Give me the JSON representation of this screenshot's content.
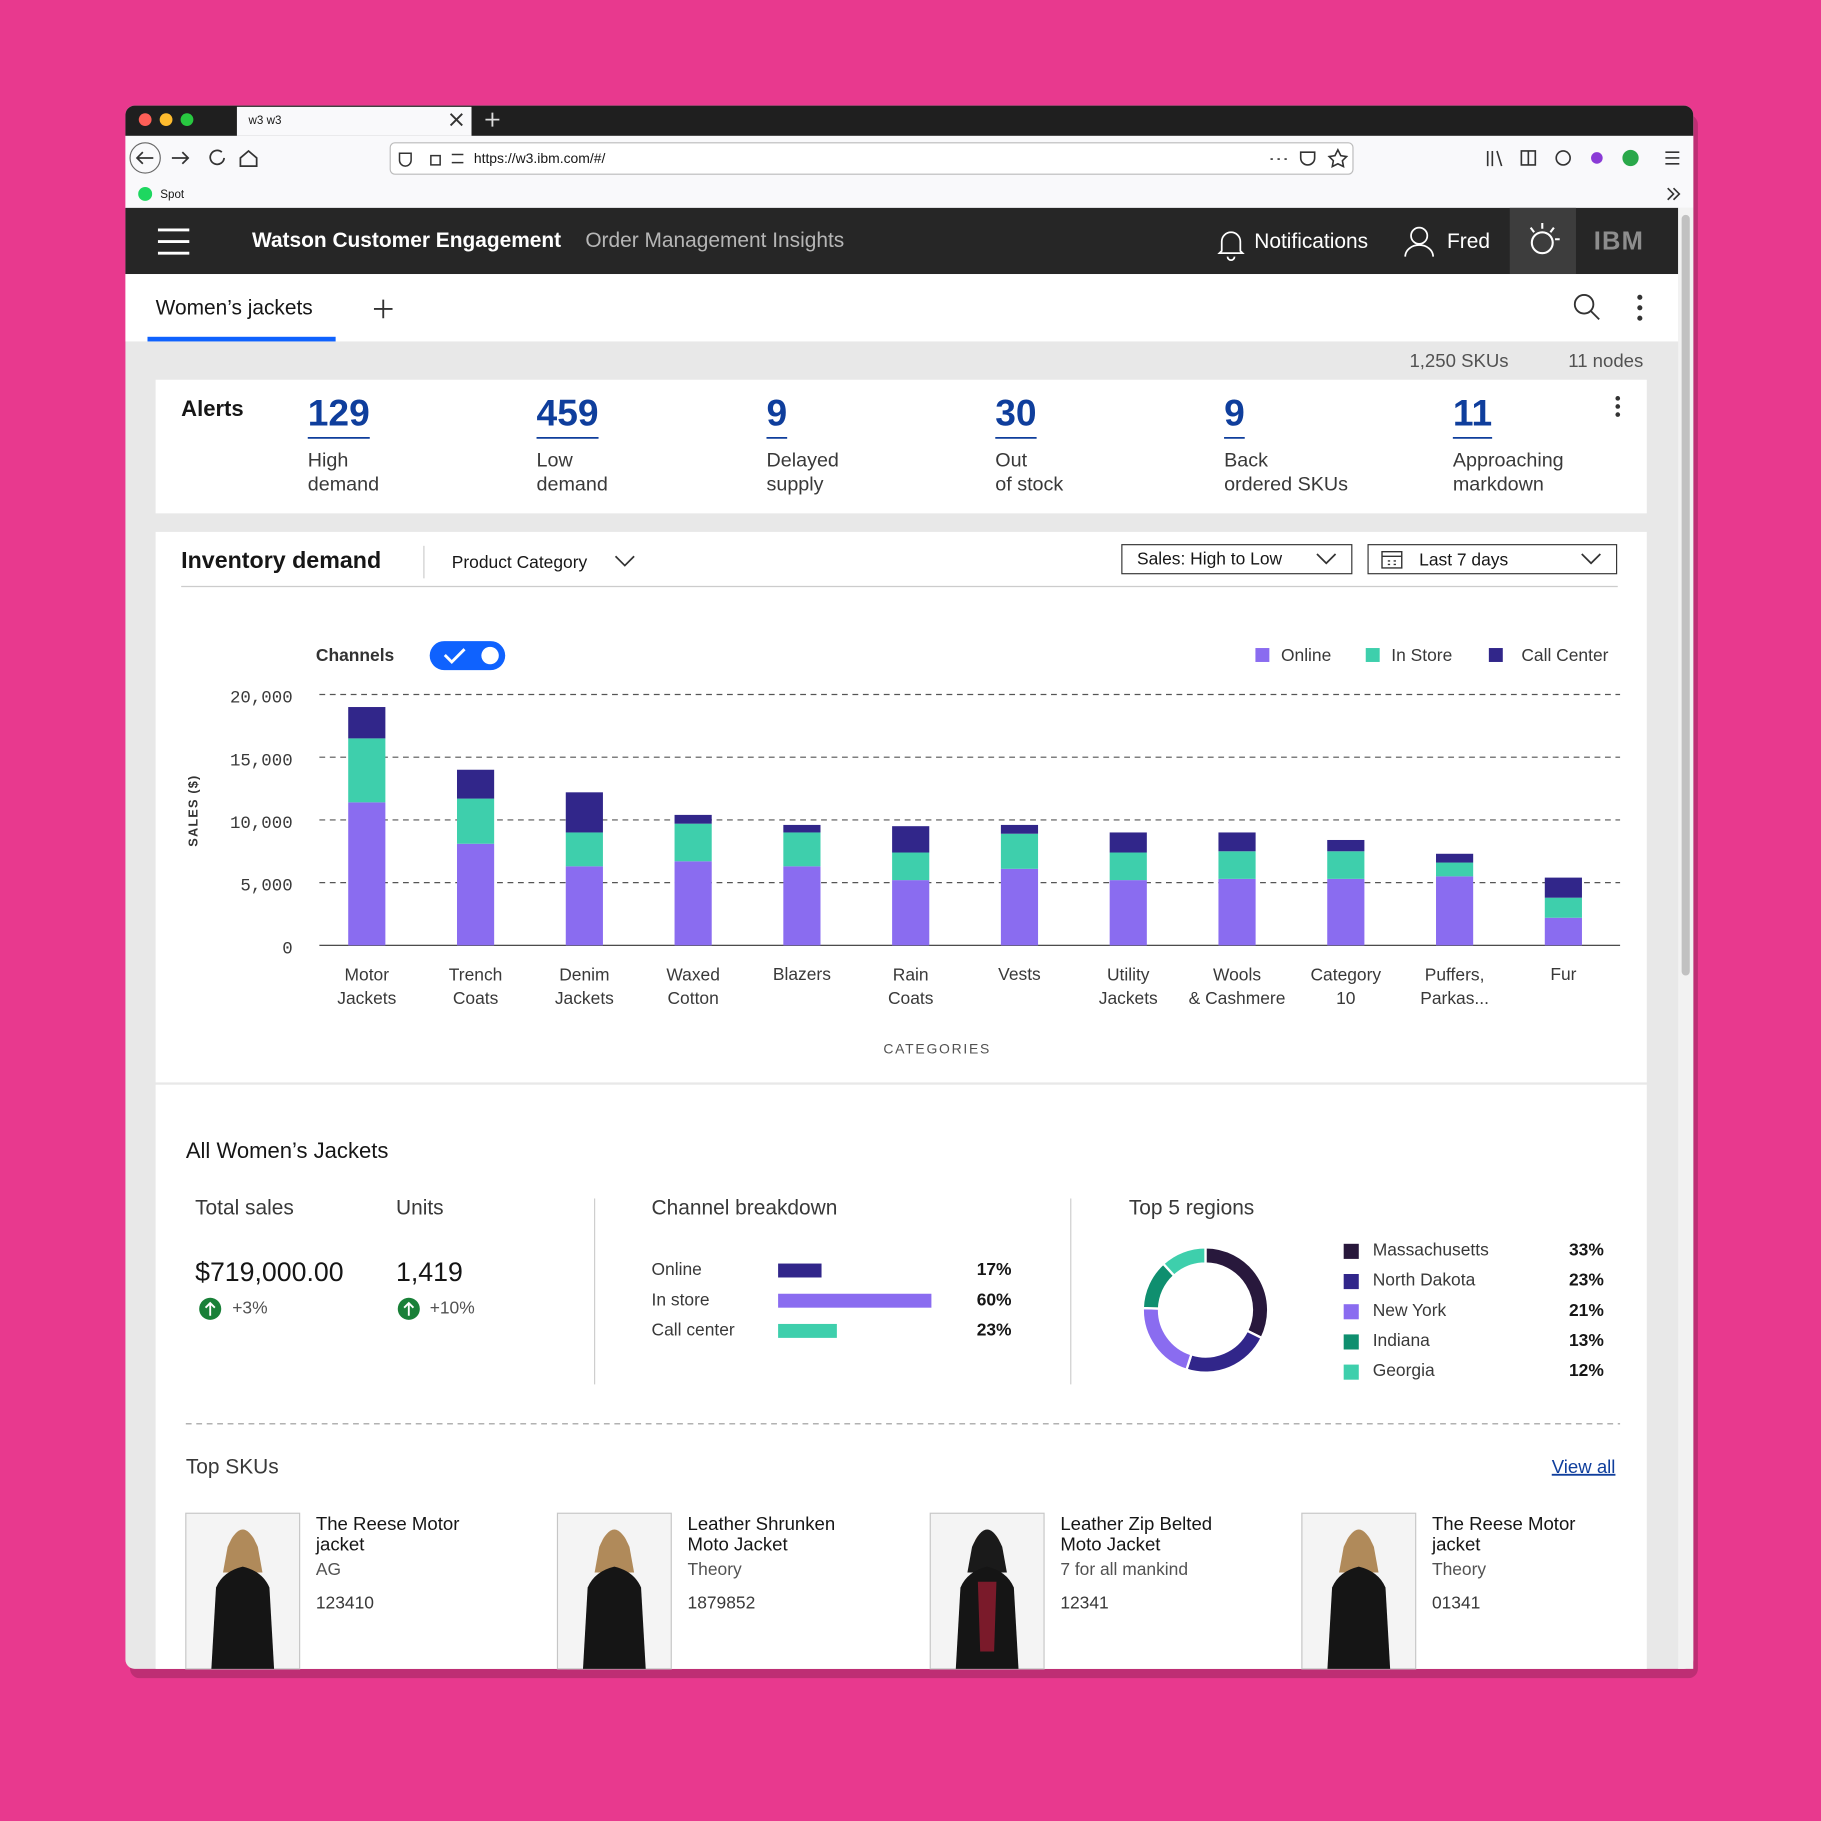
{
  "browser": {
    "tab_title": "w3  w3",
    "url": "https://w3.ibm.com/#/",
    "bookmark": "Spot"
  },
  "header": {
    "product": "Watson Customer Engagement",
    "app": "Order Management Insights",
    "notifications": "Notifications",
    "user": "Fred",
    "logo": "IBM"
  },
  "tabs": {
    "active": "Women’s  jackets"
  },
  "summary": {
    "skus": "1,250 SKUs",
    "nodes": "11 nodes"
  },
  "alerts": {
    "title": "Alerts",
    "items": [
      {
        "value": 129,
        "lines": [
          "High",
          "demand"
        ]
      },
      {
        "value": 459,
        "lines": [
          "Low",
          "demand"
        ]
      },
      {
        "value": 9,
        "lines": [
          "Delayed",
          "supply"
        ]
      },
      {
        "value": 30,
        "lines": [
          "Out",
          "of stock"
        ]
      },
      {
        "value": 9,
        "lines": [
          "Back",
          "ordered SKUs"
        ]
      },
      {
        "value": 11,
        "lines": [
          "Approaching",
          "markdown"
        ]
      }
    ]
  },
  "inventory": {
    "title": "Inventory demand",
    "filter": "Product Category",
    "sort": "Sales: High to Low",
    "range": "Last 7 days",
    "toggle_label": "Channels"
  },
  "chart_data": {
    "type": "stacked_bar",
    "ylabel": "SALES ($)",
    "xlabel": "CATEGORIES",
    "categories": [
      "Motor Jackets",
      "Trench Coats",
      "Denim Jackets",
      "Waxed Cotton",
      "Blazers",
      "Rain Coats",
      "Vests",
      "Utility Jackets",
      "Wools & Cashmere",
      "Category 10",
      "Puffers, Parkas...",
      "Fur"
    ],
    "series": [
      {
        "name": "Online",
        "color": "#8a6cf0",
        "values": [
          11400,
          8100,
          6300,
          6700,
          6300,
          5200,
          6100,
          5200,
          5300,
          5300,
          5500,
          2200
        ]
      },
      {
        "name": "In Store",
        "color": "#3ecfac",
        "values": [
          5100,
          3600,
          2700,
          3000,
          2700,
          2200,
          2800,
          2200,
          2200,
          2200,
          1100,
          1600
        ]
      },
      {
        "name": "Call Center",
        "color": "#31268a",
        "values": [
          2500,
          2300,
          3200,
          700,
          600,
          2100,
          700,
          1600,
          1500,
          900,
          700,
          1600
        ]
      }
    ],
    "ylim": [
      0,
      20000
    ],
    "yticks": [
      0,
      {
        "value": 5000,
        "label": "5,000"
      },
      {
        "value": 10000,
        "label": "10,000"
      },
      {
        "value": 15000,
        "label": "15,000"
      },
      {
        "value": 20000,
        "label": "20,000"
      }
    ],
    "grid": true,
    "legend": "top-right"
  },
  "all_jackets": {
    "title": "All Women’s Jackets",
    "total_sales": {
      "label": "Total sales",
      "value": "$719,000.00",
      "change": "+3%"
    },
    "units": {
      "label": "Units",
      "value": "1,419",
      "change": "+10%"
    }
  },
  "channel_breakdown": {
    "type": "bar",
    "title": "Channel breakdown",
    "categories": [
      "Online",
      "In store",
      "Call center"
    ],
    "values": [
      17,
      60,
      23
    ],
    "value_labels": [
      "17%",
      "60%",
      "23%"
    ],
    "colors": [
      "#31268a",
      "#8a6cf0",
      "#3ecfac"
    ]
  },
  "regions": {
    "type": "donut",
    "title": "Top 5 regions",
    "categories": [
      "Massachusetts",
      "North Dakota",
      "New York",
      "Indiana",
      "Georgia"
    ],
    "values": [
      33,
      23,
      21,
      13,
      12
    ],
    "value_labels": [
      "33%",
      "23%",
      "21%",
      "13%",
      "12%"
    ],
    "colors": [
      "#28183c",
      "#31268a",
      "#8a6cf0",
      "#0f8f6f",
      "#3ecfac"
    ]
  },
  "top_skus": {
    "title": "Top SKUs",
    "link": "View all",
    "items": [
      {
        "name_lines": [
          "The Reese Motor",
          "jacket"
        ],
        "brand": "AG",
        "sku": "123410"
      },
      {
        "name_lines": [
          "Leather Shrunken",
          "Moto Jacket"
        ],
        "brand": "Theory",
        "sku": "1879852"
      },
      {
        "name_lines": [
          "Leather Zip Belted",
          "Moto Jacket"
        ],
        "brand": "7 for all mankind",
        "sku": "12341"
      },
      {
        "name_lines": [
          "The Reese Motor",
          "jacket"
        ],
        "brand": "Theory",
        "sku": "01341"
      }
    ]
  }
}
